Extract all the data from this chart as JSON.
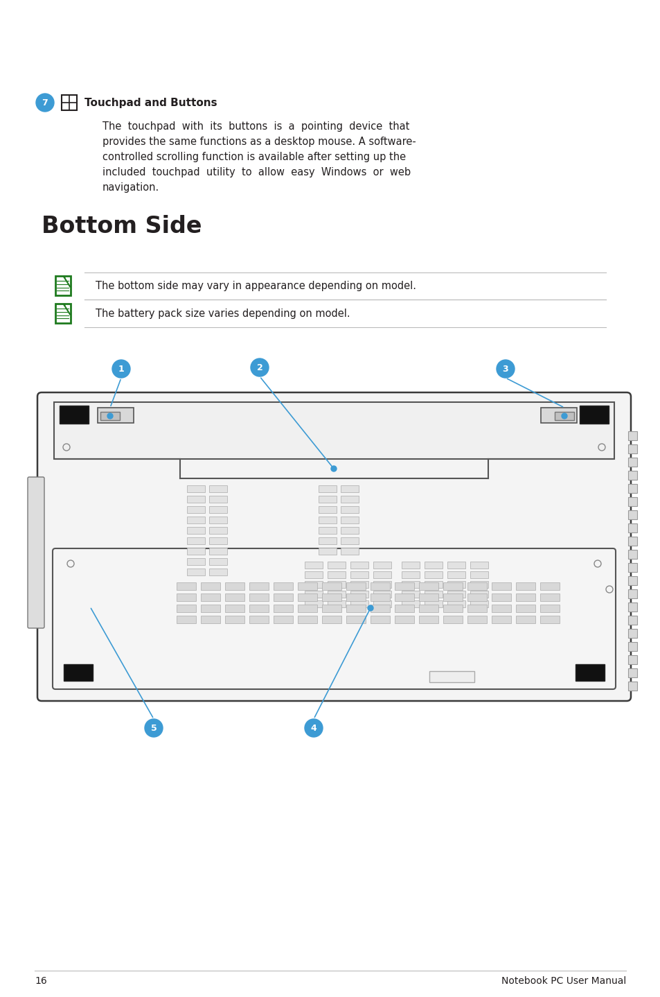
{
  "bg_color": "#ffffff",
  "page_number": "16",
  "footer_text": "Notebook PC User Manual",
  "section7_icon_label": "Touchpad and Buttons",
  "section7_body_lines": [
    "The  touchpad  with  its  buttons  is  a  pointing  device  that",
    "provides the same functions as a desktop mouse. A software-",
    "controlled scrolling function is available after setting up the",
    "included  touchpad  utility  to  allow  easy  Windows  or  web",
    "navigation."
  ],
  "section_heading": "Bottom Side",
  "note1_text": "The bottom side may vary in appearance depending on model.",
  "note2_text": "The battery pack size varies depending on model.",
  "blue_color": "#3d9bd4",
  "green_note_color": "#1e7a1e",
  "text_color": "#231f20",
  "line_color": "#bbbbbb",
  "dark_line": "#555555",
  "laptop_stroke": "#3a3a3a"
}
